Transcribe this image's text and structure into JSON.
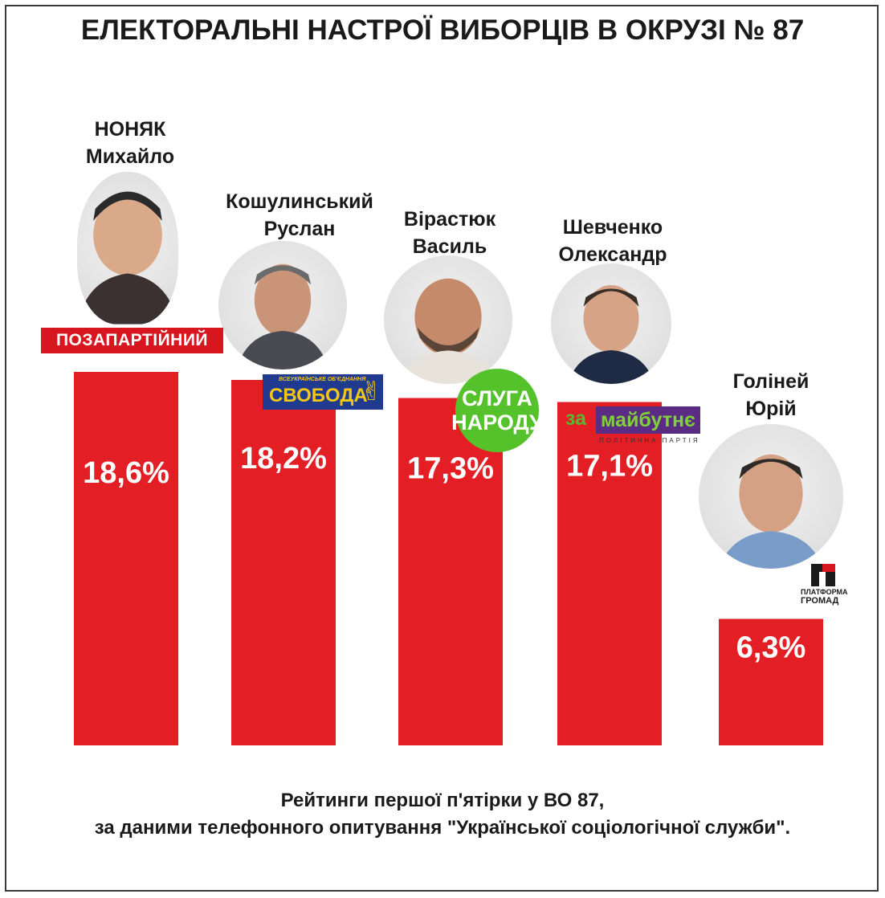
{
  "title": "ЕЛЕКТОРАЛЬНІ НАСТРОЇ ВИБОРЦІВ В ОКРУЗІ № 87",
  "candidates": [
    {
      "name": "НОНЯК\nМихайло",
      "party": "ПОЗАПАРТІЙНИЙ"
    },
    {
      "name": "Кошулинський\nРуслан",
      "party": "СВОБОДА",
      "party_small": "ВСЕУКРАЇНСЬКЕ ОБ'ЄДНАННЯ"
    },
    {
      "name": "Вірастюк\nВасиль",
      "party": "СЛУГА\nНАРОДУ"
    },
    {
      "name": "Шевченко\nОлександр",
      "party_za": "за",
      "party_main": "майбутнє",
      "party_sub": "ПОЛІТИЧНА ПАРТІЯ"
    },
    {
      "name": "Голіней\nЮрій",
      "party_l1": "ПЛАТФОРМА",
      "party_l2": "ГРОМАД"
    }
  ],
  "chart_data": {
    "type": "bar",
    "title": "ЕЛЕКТОРАЛЬНІ НАСТРОЇ ВИБОРЦІВ В ОКРУЗІ № 87",
    "categories": [
      "НОНЯК Михайло",
      "Кошулинський Руслан",
      "Вірастюк Василь",
      "Шевченко Олександр",
      "Голіней Юрій"
    ],
    "values": [
      18.6,
      18.2,
      17.3,
      17.1,
      6.3
    ],
    "labels": [
      "18,6%",
      "18,2%",
      "17,3%",
      "17,1%",
      "6,3%"
    ],
    "unit": "%",
    "bar_color": "#e31e25",
    "label_color": "#ffffff",
    "grid": false,
    "legend": "none"
  },
  "footer": {
    "line1": "Рейтинги першої п'ятірки у ВО 87,",
    "line2": "за даними телефонного опитування \"Української соціологічної служби\"."
  }
}
